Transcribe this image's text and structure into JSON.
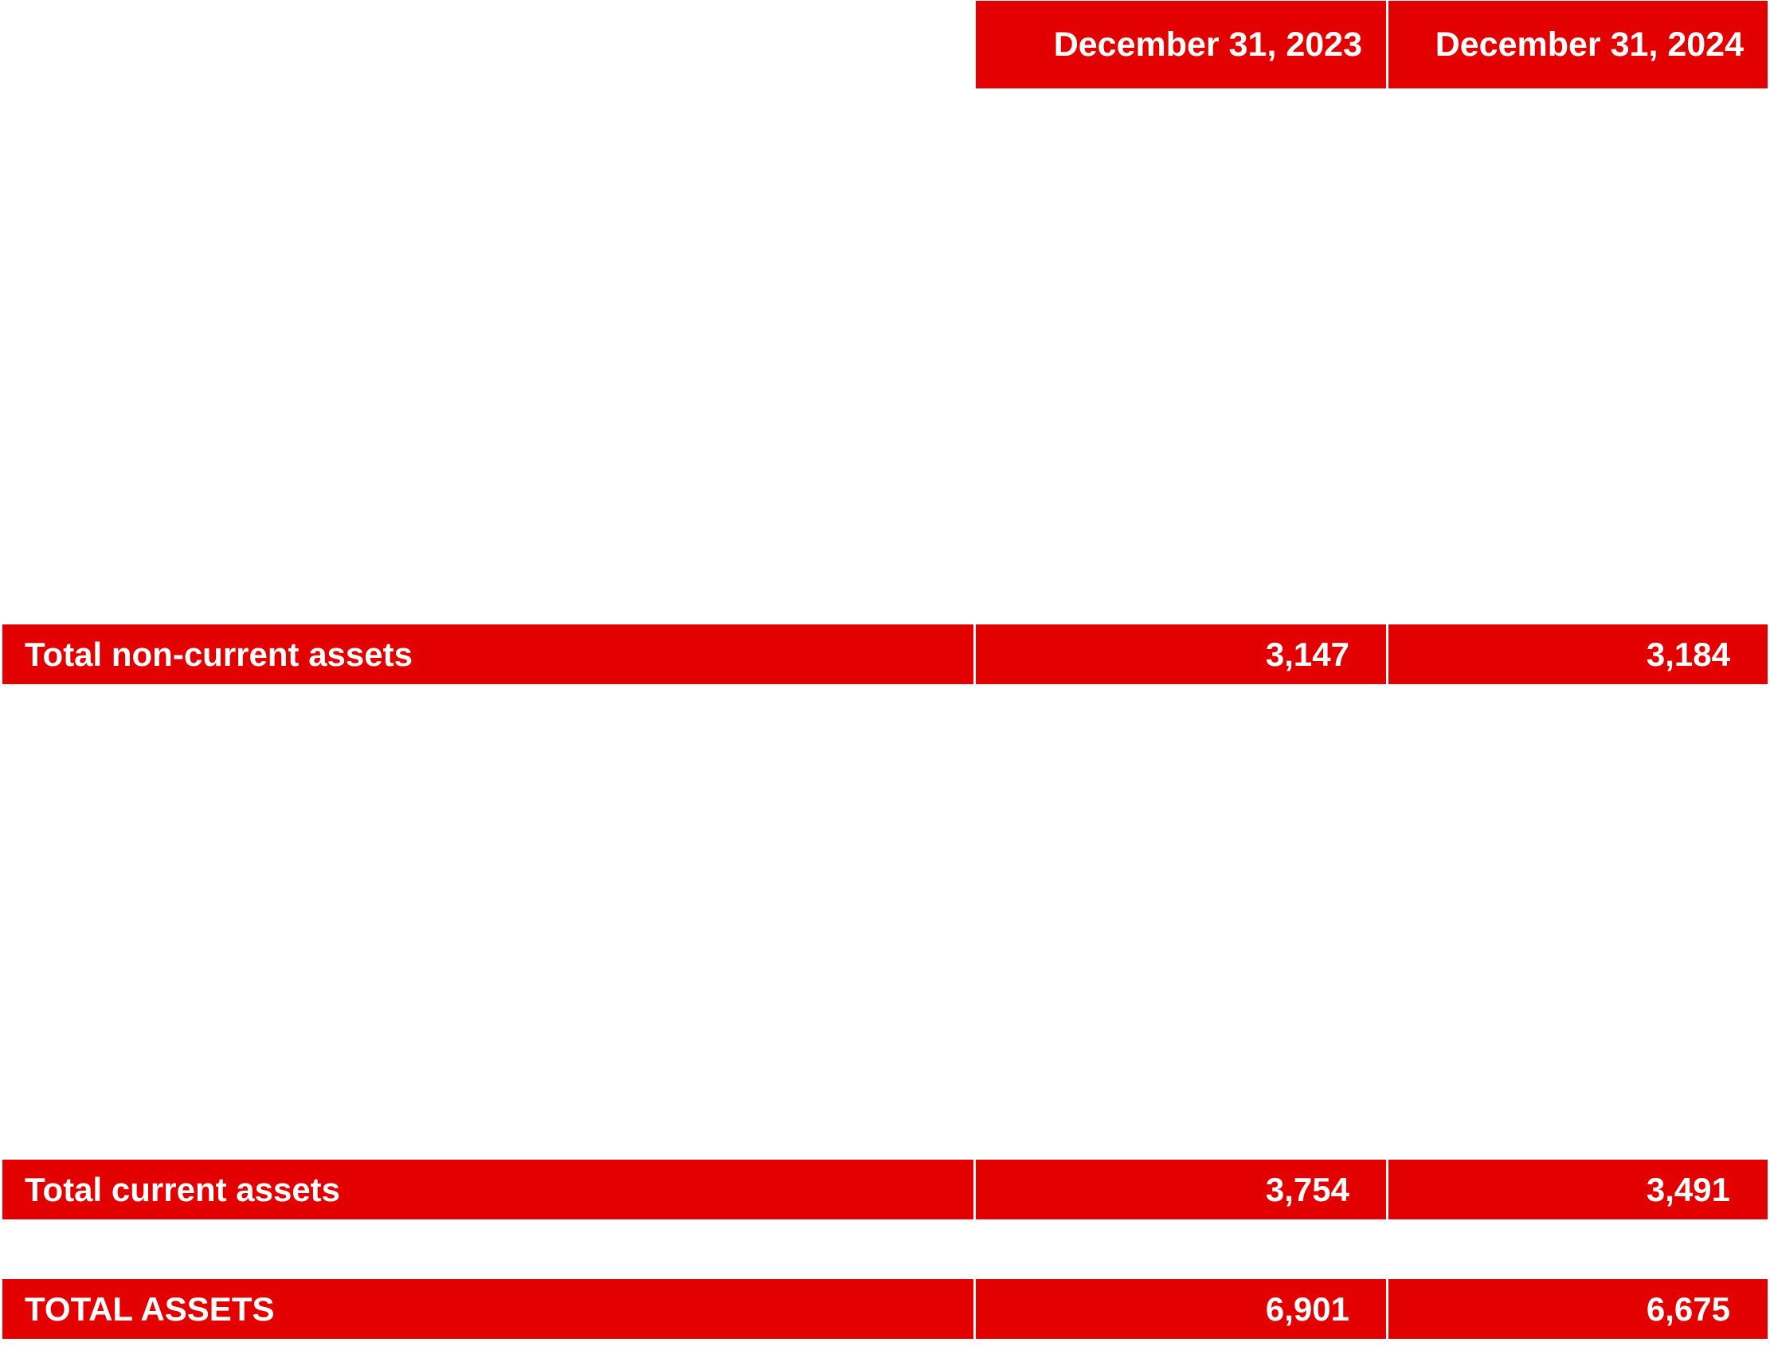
{
  "header": {
    "col_2023": "December 31, 2023",
    "col_2024": "December 31, 2024"
  },
  "rows": [
    {
      "label": "Total non-current assets",
      "v2023": "3,147",
      "v2024": "3,184"
    },
    {
      "label": "Total current assets",
      "v2023": "3,754",
      "v2024": "3,491"
    },
    {
      "label": "TOTAL ASSETS",
      "v2023": "6,901",
      "v2024": "6,675"
    }
  ],
  "colors": {
    "accent": "#e30000",
    "text": "#ffffff",
    "background": "#ffffff"
  }
}
